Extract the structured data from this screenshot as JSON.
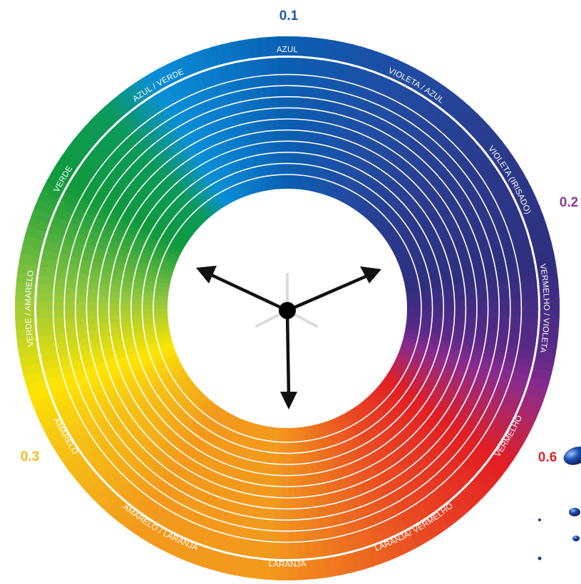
{
  "colors": {
    "blue": "#0a5fb3",
    "sky": "#0a8fd8",
    "green": "#0f9a3c",
    "lime": "#8cc63f",
    "yellow": "#ffe500",
    "orange": "#f39a1c",
    "red_orange": "#e95a2a",
    "red": "#e31e24",
    "purple": "#8a2b8e",
    "indigo": "#2e2f7e",
    "label_blue": "#1f5aa6",
    "label_purple": "#8b3a96",
    "label_yellow": "#f3b91b",
    "label_red": "#e0242a"
  },
  "outer_values": [
    {
      "text": "0.1",
      "color_key": "label_blue"
    },
    {
      "text": "0.2",
      "color_key": "label_purple"
    },
    {
      "text": "0.3",
      "color_key": "label_yellow"
    },
    {
      "text": "0.6",
      "color_key": "label_red"
    }
  ],
  "segments": [
    {
      "label": "AZUL"
    },
    {
      "label": "VIOLETA / AZUL"
    },
    {
      "label": "VIOLETA (IRISADO)"
    },
    {
      "label": "VERMELHO / VIOLETA"
    },
    {
      "label": "VERMELHO"
    },
    {
      "label": "LARANJA/ VERMELHO"
    },
    {
      "label": "LARANJA"
    },
    {
      "label": "AMARELO / LARANJA"
    },
    {
      "label": "AMARELO"
    },
    {
      "label": "VERDE / AMARELO"
    },
    {
      "label": "VERDE"
    },
    {
      "label": "AZUL / VERDE"
    }
  ],
  "center_icon": "three-arrow-vector-icon",
  "decoration_icon": "water-droplets-icon"
}
